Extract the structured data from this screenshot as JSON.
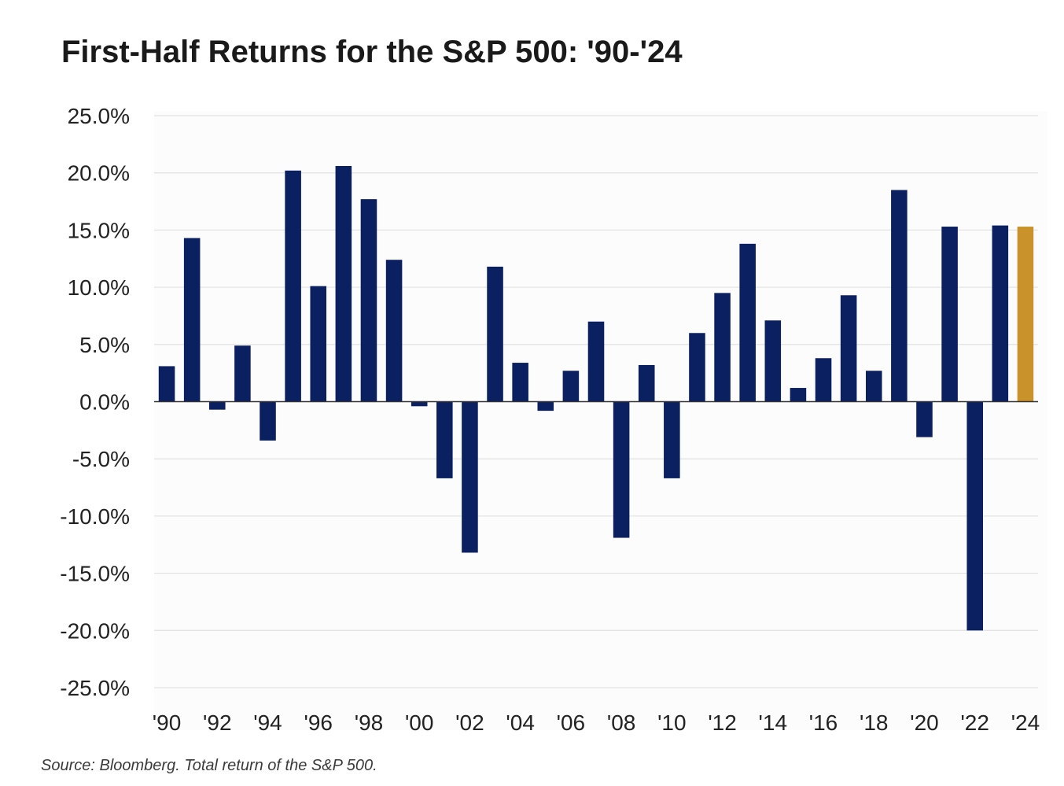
{
  "title": "First-Half Returns for the S&P 500: '90-'24",
  "source": "Source: Bloomberg. Total return of the S&P 500.",
  "chart_data": {
    "type": "bar",
    "title": "First-Half Returns for the S&P 500: '90-'24",
    "xlabel": "",
    "ylabel": "",
    "ylim": [
      -25,
      25
    ],
    "yticks": [
      25,
      20,
      15,
      10,
      5,
      0,
      -5,
      -10,
      -15,
      -20,
      -25
    ],
    "ytick_labels": [
      "25.0%",
      "20.0%",
      "15.0%",
      "10.0%",
      "5.0%",
      "0.0%",
      "-5.0%",
      "-10.0%",
      "-15.0%",
      "-20.0%",
      "-25.0%"
    ],
    "grid": true,
    "legend": "none",
    "categories": [
      "1990",
      "1991",
      "1992",
      "1993",
      "1994",
      "1995",
      "1996",
      "1997",
      "1998",
      "1999",
      "2000",
      "2001",
      "2002",
      "2003",
      "2004",
      "2005",
      "2006",
      "2007",
      "2008",
      "2009",
      "2010",
      "2011",
      "2012",
      "2013",
      "2014",
      "2015",
      "2016",
      "2017",
      "2018",
      "2019",
      "2020",
      "2021",
      "2022",
      "2023",
      "2024"
    ],
    "xtick_labels": [
      "'90",
      "",
      "'92",
      "",
      "'94",
      "",
      "'96",
      "",
      "'98",
      "",
      "'00",
      "",
      "'02",
      "",
      "'04",
      "",
      "'06",
      "",
      "'08",
      "",
      "'10",
      "",
      "'12",
      "",
      "'14",
      "",
      "'16",
      "",
      "'18",
      "",
      "'20",
      "",
      "'22",
      "",
      "'24"
    ],
    "values": [
      3.1,
      14.3,
      -0.7,
      4.9,
      -3.4,
      20.2,
      10.1,
      20.6,
      17.7,
      12.4,
      -0.4,
      -6.7,
      -13.2,
      11.8,
      3.4,
      -0.8,
      2.7,
      7.0,
      -11.9,
      3.2,
      -6.7,
      6.0,
      9.5,
      13.8,
      7.1,
      1.2,
      3.8,
      9.3,
      2.7,
      18.5,
      -3.1,
      15.3,
      -20.0,
      15.4,
      15.3
    ],
    "colors": {
      "bar": "#0b2060",
      "highlight": "#c9922a",
      "highlight_index": 34,
      "grid": "#e3e3e3",
      "axis": "#333333",
      "tick_text": "#222222"
    }
  }
}
